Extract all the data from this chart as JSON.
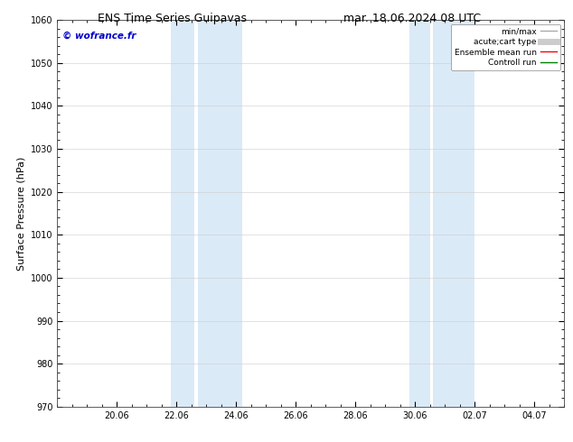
{
  "title_left": "ENS Time Series Guipavas",
  "title_right": "mar. 18.06.2024 08 UTC",
  "ylabel": "Surface Pressure (hPa)",
  "ylim": [
    970,
    1060
  ],
  "yticks": [
    970,
    980,
    990,
    1000,
    1010,
    1020,
    1030,
    1040,
    1050,
    1060
  ],
  "xlim": [
    0,
    17
  ],
  "xtick_positions": [
    2,
    4,
    6,
    8,
    10,
    12,
    14,
    16
  ],
  "xtick_labels": [
    "20.06",
    "22.06",
    "24.06",
    "26.06",
    "28.06",
    "30.06",
    "02.07",
    "04.07"
  ],
  "shaded_regions": [
    {
      "start": 3.8,
      "end": 4.6,
      "color": "#dbeaf7"
    },
    {
      "start": 4.7,
      "end": 6.2,
      "color": "#dbeaf7"
    },
    {
      "start": 11.8,
      "end": 12.5,
      "color": "#dbeaf7"
    },
    {
      "start": 12.6,
      "end": 14.0,
      "color": "#dbeaf7"
    }
  ],
  "watermark_text": "© wofrance.fr",
  "watermark_color": "#0000cc",
  "background_color": "#ffffff",
  "plot_bg_color": "#ffffff",
  "legend_entries": [
    {
      "label": "min/max",
      "color": "#aaaaaa",
      "lw": 1.0
    },
    {
      "label": "acute;cart type",
      "color": "#cccccc",
      "lw": 5
    },
    {
      "label": "Ensemble mean run",
      "color": "#ff0000",
      "lw": 1.0
    },
    {
      "label": "Controll run",
      "color": "#008000",
      "lw": 1.0
    }
  ],
  "grid_color": "#cccccc",
  "tick_fontsize": 7,
  "label_fontsize": 8,
  "title_fontsize": 9
}
